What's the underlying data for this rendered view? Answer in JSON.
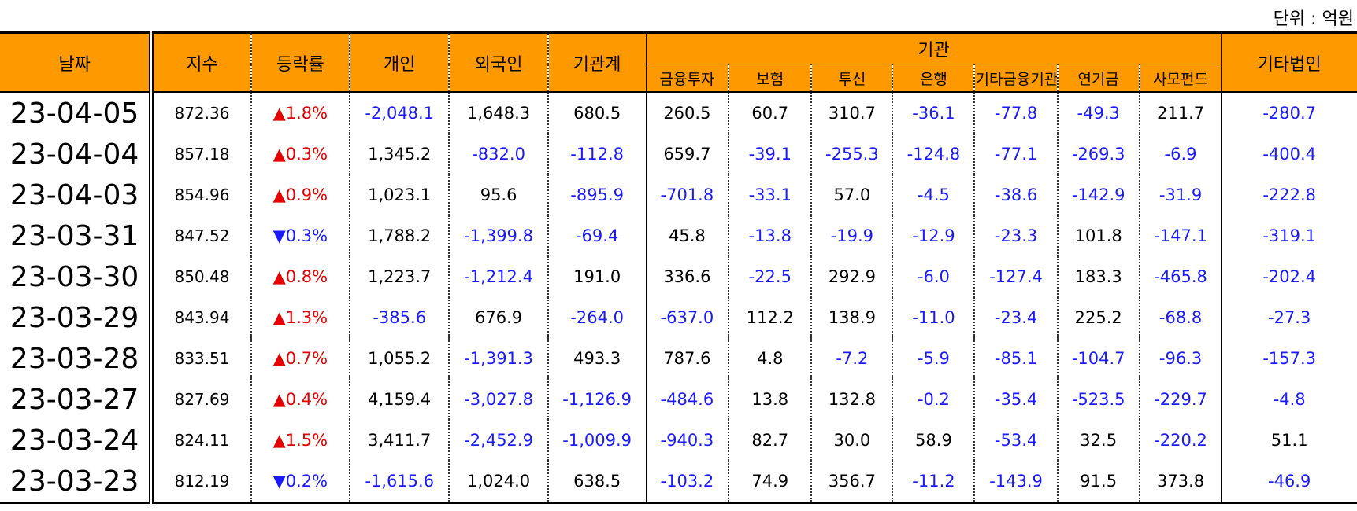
{
  "unit_label": "단위 : 억원",
  "headers": {
    "date": "날짜",
    "index": "지수",
    "change": "등락률",
    "individual": "개인",
    "foreign": "외국인",
    "inst_total": "기관계",
    "institution": "기관",
    "sub": [
      "금융투자",
      "보험",
      "투신",
      "은행",
      "기타금융기관",
      "연기금",
      "사모펀드"
    ],
    "other_corp": "기타법인"
  },
  "rows": [
    {
      "date": "23-04-05",
      "index": "872.36",
      "arrow": "▲",
      "change": "1.8%",
      "dir": "up",
      "vals": [
        "-2,048.1",
        "1,648.3",
        "680.5",
        "260.5",
        "60.7",
        "310.7",
        "-36.1",
        "-77.8",
        "-49.3",
        "211.7",
        "-280.7"
      ]
    },
    {
      "date": "23-04-04",
      "index": "857.18",
      "arrow": "▲",
      "change": "0.3%",
      "dir": "up",
      "vals": [
        "1,345.2",
        "-832.0",
        "-112.8",
        "659.7",
        "-39.1",
        "-255.3",
        "-124.8",
        "-77.1",
        "-269.3",
        "-6.9",
        "-400.4"
      ]
    },
    {
      "date": "23-04-03",
      "index": "854.96",
      "arrow": "▲",
      "change": "0.9%",
      "dir": "up",
      "vals": [
        "1,023.1",
        "95.6",
        "-895.9",
        "-701.8",
        "-33.1",
        "57.0",
        "-4.5",
        "-38.6",
        "-142.9",
        "-31.9",
        "-222.8"
      ]
    },
    {
      "date": "23-03-31",
      "index": "847.52",
      "arrow": "▼",
      "change": "0.3%",
      "dir": "down",
      "vals": [
        "1,788.2",
        "-1,399.8",
        "-69.4",
        "45.8",
        "-13.8",
        "-19.9",
        "-12.9",
        "-23.3",
        "101.8",
        "-147.1",
        "-319.1"
      ]
    },
    {
      "date": "23-03-30",
      "index": "850.48",
      "arrow": "▲",
      "change": "0.8%",
      "dir": "up",
      "vals": [
        "1,223.7",
        "-1,212.4",
        "191.0",
        "336.6",
        "-22.5",
        "292.9",
        "-6.0",
        "-127.4",
        "183.3",
        "-465.8",
        "-202.4"
      ]
    },
    {
      "date": "23-03-29",
      "index": "843.94",
      "arrow": "▲",
      "change": "1.3%",
      "dir": "up",
      "vals": [
        "-385.6",
        "676.9",
        "-264.0",
        "-637.0",
        "112.2",
        "138.9",
        "-11.0",
        "-23.4",
        "225.2",
        "-68.8",
        "-27.3"
      ]
    },
    {
      "date": "23-03-28",
      "index": "833.51",
      "arrow": "▲",
      "change": "0.7%",
      "dir": "up",
      "vals": [
        "1,055.2",
        "-1,391.3",
        "493.3",
        "787.6",
        "4.8",
        "-7.2",
        "-5.9",
        "-85.1",
        "-104.7",
        "-96.3",
        "-157.3"
      ]
    },
    {
      "date": "23-03-27",
      "index": "827.69",
      "arrow": "▲",
      "change": "0.4%",
      "dir": "up",
      "vals": [
        "4,159.4",
        "-3,027.8",
        "-1,126.9",
        "-484.6",
        "13.8",
        "132.8",
        "-0.2",
        "-35.4",
        "-523.5",
        "-229.7",
        "-4.8"
      ]
    },
    {
      "date": "23-03-24",
      "index": "824.11",
      "arrow": "▲",
      "change": "1.5%",
      "dir": "up",
      "vals": [
        "3,411.7",
        "-2,452.9",
        "-1,009.9",
        "-940.3",
        "82.7",
        "30.0",
        "58.9",
        "-53.4",
        "32.5",
        "-220.2",
        "51.1"
      ]
    },
    {
      "date": "23-03-23",
      "index": "812.19",
      "arrow": "▼",
      "change": "0.2%",
      "dir": "down",
      "vals": [
        "-1,615.6",
        "1,024.0",
        "638.5",
        "-103.2",
        "74.9",
        "356.7",
        "-11.2",
        "-143.9",
        "91.5",
        "373.8",
        "-46.9"
      ]
    }
  ],
  "colors": {
    "header_bg": "#ff9900",
    "up": "#e60000",
    "down": "#1a1aff",
    "negative": "#1a1aff"
  }
}
